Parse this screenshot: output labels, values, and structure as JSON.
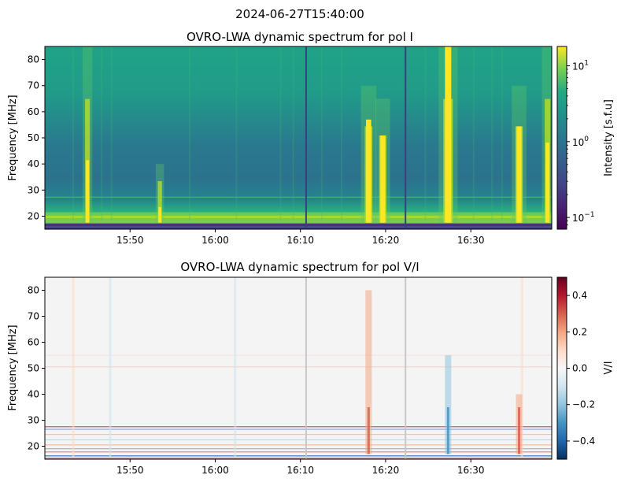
{
  "suptitle": "2024-06-27T15:40:00",
  "chart_data": [
    {
      "type": "heatmap",
      "title": "OVRO-LWA dynamic spectrum for pol I",
      "xlabel": "",
      "ylabel": "Frequency [MHz]",
      "x_range": [
        "15:40:00",
        "16:39:30"
      ],
      "ylim": [
        15,
        85
      ],
      "x_ticks": [
        "15:50",
        "16:00",
        "16:10",
        "16:20",
        "16:30"
      ],
      "y_ticks": [
        20,
        30,
        40,
        50,
        60,
        70,
        80
      ],
      "colormap": "viridis",
      "color_scale": "log",
      "colorbar_label": "Intensity [s.f.u]",
      "colorbar_range": [
        0.07,
        18
      ],
      "colorbar_ticks": [
        {
          "value": 0.1,
          "base": "10",
          "exp": "−1"
        },
        {
          "value": 1,
          "base": "10",
          "exp": "0"
        },
        {
          "value": 10,
          "base": "10",
          "exp": "1"
        }
      ],
      "data_gaps": [
        "16:10:40",
        "16:22:20"
      ],
      "bursts": [
        {
          "time": "15:45:00",
          "ftop": 85,
          "strength": 0.35
        },
        {
          "time": "15:53:30",
          "ftop": 40,
          "strength": 0.25
        },
        {
          "time": "16:18:00",
          "ftop": 70,
          "strength": 0.75
        },
        {
          "time": "16:19:40",
          "ftop": 65,
          "strength": 0.7
        },
        {
          "time": "16:27:20",
          "ftop": 85,
          "strength": 1.0
        },
        {
          "time": "16:35:40",
          "ftop": 70,
          "strength": 0.7
        },
        {
          "time": "16:39:00",
          "ftop": 85,
          "strength": 0.45
        }
      ]
    },
    {
      "type": "heatmap",
      "title": "OVRO-LWA dynamic spectrum for pol V/I",
      "xlabel": "",
      "ylabel": "Frequency [MHz]",
      "x_range": [
        "15:40:00",
        "16:39:30"
      ],
      "ylim": [
        15,
        85
      ],
      "x_ticks": [
        "15:50",
        "16:00",
        "16:10",
        "16:20",
        "16:30"
      ],
      "y_ticks": [
        20,
        30,
        40,
        50,
        60,
        70,
        80
      ],
      "colormap": "RdBu_r",
      "color_scale": "linear",
      "colorbar_label": "V/I",
      "colorbar_range": [
        -0.5,
        0.5
      ],
      "colorbar_ticks": [
        "0.4",
        "0.2",
        "0.0",
        "−0.2",
        "−0.4"
      ],
      "data_gaps": [
        "16:10:40",
        "16:22:20"
      ],
      "features": [
        {
          "time": "16:18:00",
          "sign": "positive",
          "fmax": 80
        },
        {
          "time": "16:27:20",
          "sign": "negative",
          "fmax": 55
        },
        {
          "time": "16:35:40",
          "sign": "positive",
          "fmax": 40
        }
      ]
    }
  ]
}
